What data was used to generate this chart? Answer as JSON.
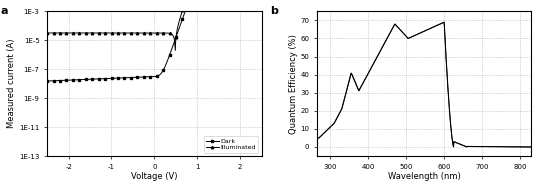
{
  "panel_a": {
    "title_label": "a",
    "xlabel": "Voltage (V)",
    "ylabel": "Measured current (A)",
    "xlim": [
      -2.5,
      2.5
    ],
    "ylim": [
      1e-13,
      0.001
    ],
    "ytick_vals": [
      1e-13,
      1e-11,
      1e-09,
      1e-07,
      1e-05,
      0.001
    ],
    "ytick_labels": [
      "1E-13",
      "1E-11",
      "1E-9",
      "1E-7",
      "1E-5",
      "1E-3"
    ],
    "xticks": [
      -2,
      -1,
      0,
      1,
      2
    ],
    "legend_dark": "Dark",
    "legend_illuminated": "Illuminated"
  },
  "panel_b": {
    "title_label": "b",
    "xlabel": "Wavelength (nm)",
    "ylabel": "Quantum Efficiency (%)",
    "xlim": [
      265,
      830
    ],
    "ylim": [
      -5,
      75
    ],
    "yticks": [
      0,
      10,
      20,
      30,
      40,
      50,
      60,
      70
    ],
    "xticks": [
      300,
      400,
      500,
      600,
      700,
      800
    ]
  },
  "background": "#ffffff",
  "grid_color": "#aaaaaa",
  "grid_style": ":"
}
